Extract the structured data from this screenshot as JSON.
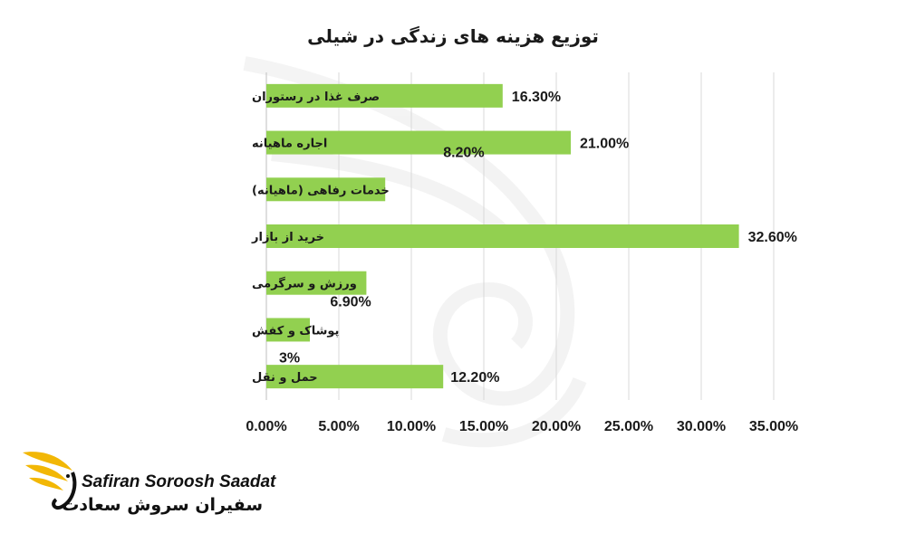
{
  "chart_data": {
    "type": "bar",
    "orientation": "horizontal",
    "title": "توزیع هزینه های زندگی در شیلی",
    "categories": [
      "صرف غذا در رستوران",
      "اجاره ماهیانه",
      "خدمات رفاهی (ماهیانه)",
      "خرید از بازار",
      "ورزش و سرگرمی",
      "پوشاک و کفش",
      "حمل و نقل"
    ],
    "values": [
      16.3,
      21.0,
      8.2,
      32.6,
      6.9,
      3.0,
      12.2
    ],
    "data_labels": [
      "16.30%",
      "21.00%",
      "8.20%",
      "32.60%",
      "6.90%",
      "3%",
      "12.20%"
    ],
    "xlim": [
      0,
      35
    ],
    "x_ticks": [
      "0.00%",
      "5.00%",
      "10.00%",
      "15.00%",
      "20.00%",
      "25.00%",
      "30.00%",
      "35.00%"
    ],
    "grid": true,
    "legend": "none",
    "bar_color": "#92d050"
  },
  "logo": {
    "latin": "Safiran Soroosh Saadat",
    "persian": "سفیران سروش سعادت",
    "accent_color": "#f2b705"
  }
}
